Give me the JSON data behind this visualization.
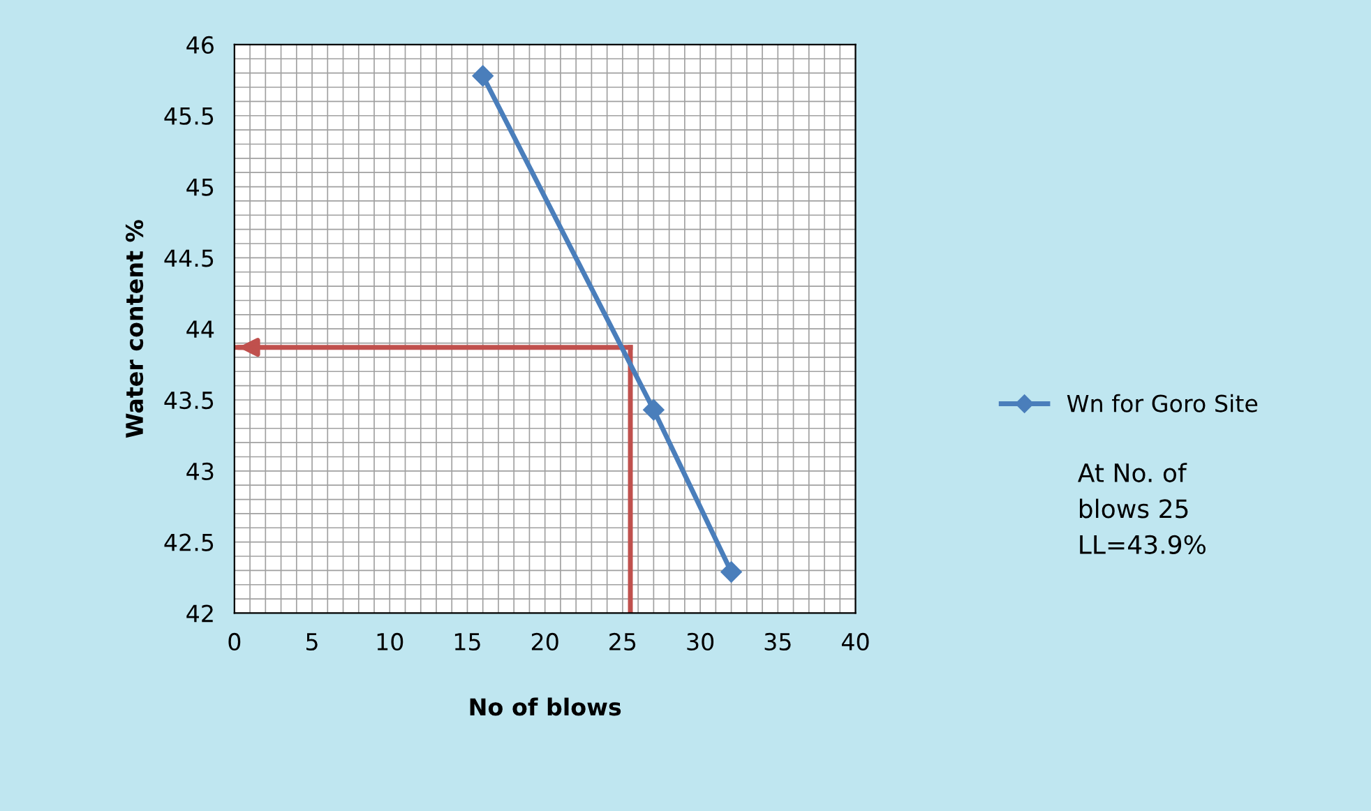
{
  "chart_data": {
    "type": "line",
    "xlabel": "No of blows",
    "ylabel": "Water content %",
    "series": [
      {
        "name": "Wn for Goro Site",
        "color": "#4a7ebb",
        "x": [
          16,
          27,
          32
        ],
        "values": [
          45.78,
          43.43,
          42.29
        ]
      }
    ],
    "xlim": [
      0,
      40
    ],
    "xticks": [
      0,
      5,
      10,
      15,
      20,
      25,
      30,
      35,
      40
    ],
    "ylim": [
      42,
      46
    ],
    "yticks": [
      42,
      {
        "value": 42.5,
        "label": "42.5"
      },
      43,
      {
        "value": 43.5,
        "label": "43.5"
      },
      44,
      {
        "value": 44.5,
        "label": "44.5"
      },
      45,
      {
        "value": 45.5,
        "label": "45.5"
      },
      46
    ],
    "grid": true,
    "legend": "right",
    "marker": "diamond",
    "line_style": "solid",
    "ref_lines": [
      {
        "axis": "y",
        "value": 43.87,
        "label": null,
        "color": "#c0504d"
      },
      {
        "axis": "x",
        "value": 25.5,
        "label": null,
        "color": "#c0504d"
      }
    ],
    "annotations": [
      "At No. of\nblows 25\nLL=43.9%"
    ]
  }
}
